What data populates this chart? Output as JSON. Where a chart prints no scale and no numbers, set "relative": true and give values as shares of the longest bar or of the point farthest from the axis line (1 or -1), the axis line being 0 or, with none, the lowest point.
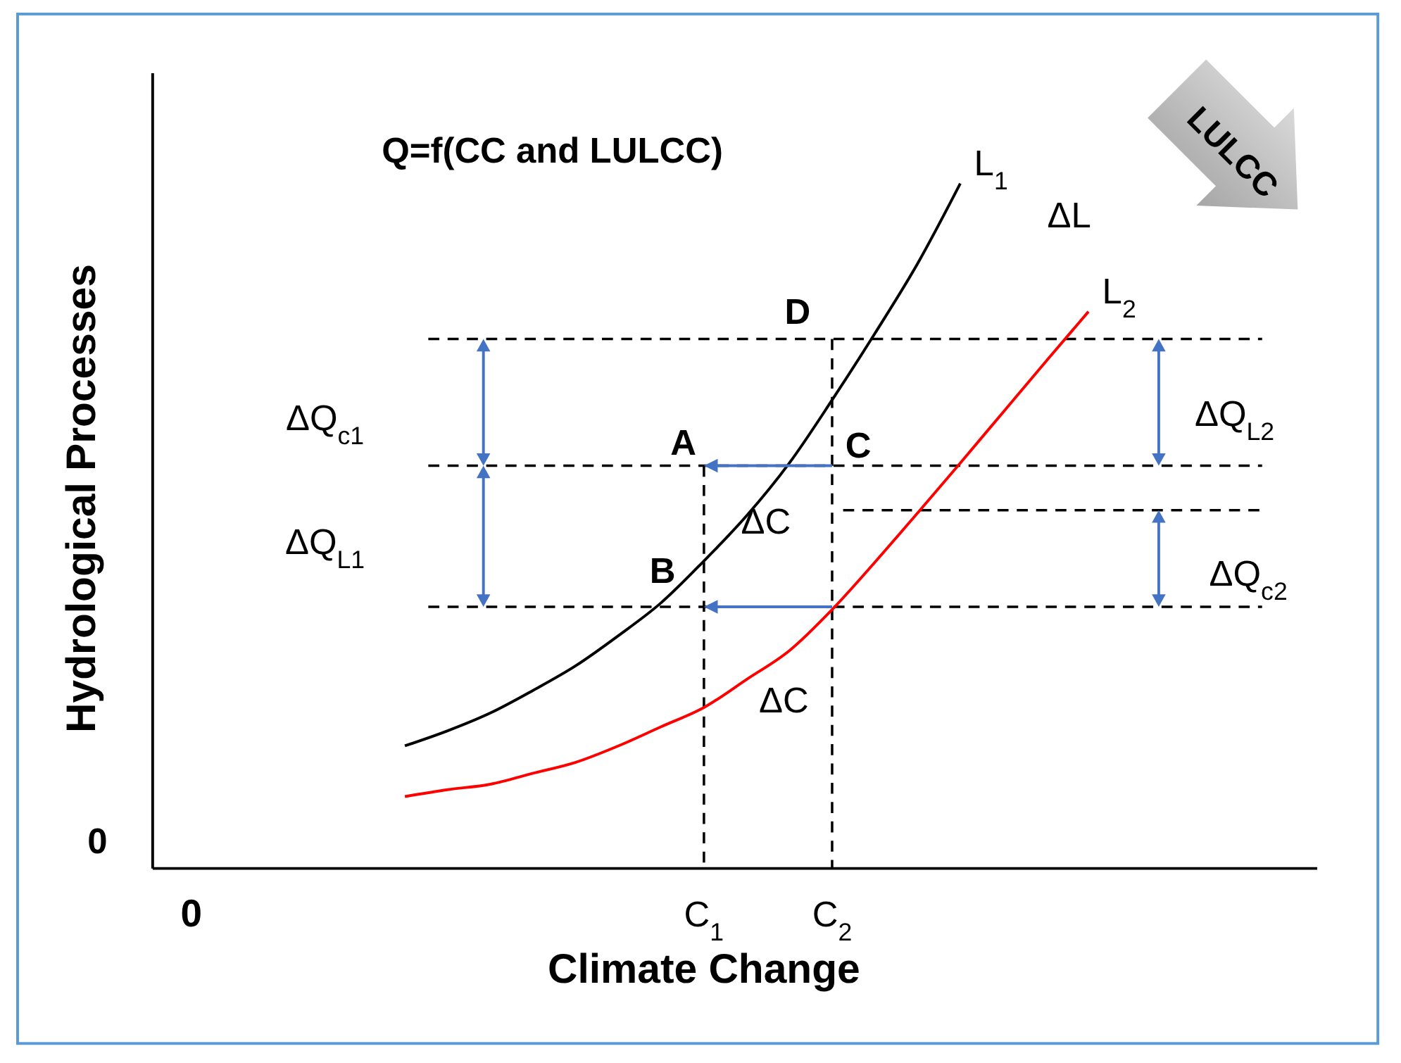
{
  "chart_data": {
    "type": "line",
    "relative": true,
    "title": "Q=f(CC and LULCC)",
    "xlabel": "Climate Change",
    "ylabel": "Hydrological Processes",
    "categories": [
      "0",
      null,
      null,
      null,
      null,
      null,
      null,
      null,
      null,
      null,
      null,
      null,
      "C$_{1}$",
      null,
      null,
      "C$_{2}$",
      null,
      null,
      null,
      null,
      null,
      null,
      null,
      null,
      null,
      null,
      null
    ],
    "series": [
      {
        "name": "L$_{1}$",
        "color": "#000000",
        "values": [
          null,
          null,
          null,
          null,
          null,
          0.179,
          0.201,
          0.227,
          0.26,
          0.296,
          0.34,
          0.388,
          0.449,
          0.515,
          0.592,
          0.684,
          0.781,
          0.883,
          1,
          null,
          null,
          null,
          null,
          null,
          null,
          null,
          null
        ]
      },
      {
        "name": "L$_{2}$",
        "color": "#ff0000",
        "values": [
          null,
          null,
          null,
          null,
          null,
          0.105,
          0.115,
          0.123,
          0.139,
          0.155,
          0.179,
          0.207,
          0.235,
          0.276,
          0.318,
          0.378,
          0.447,
          0.519,
          0.592,
          0.666,
          0.74,
          0.813,
          null,
          null,
          null,
          null,
          null
        ]
      }
    ],
    "ref_lines": [
      {
        "axis": "y",
        "value": 0.773,
        "line_style": "dashed"
      },
      {
        "axis": "y",
        "value": 0.588,
        "line_style": "dashed"
      },
      {
        "axis": "y",
        "value": 0.382,
        "line_style": "dashed"
      },
      {
        "axis": "y",
        "value": 0.523,
        "line_style": "dashed"
      },
      {
        "axis": "x",
        "value": "C$_{1}$",
        "line_style": "dashed"
      },
      {
        "axis": "x",
        "value": "C$_{2}$",
        "line_style": "dashed"
      }
    ],
    "annotations": [
      "LULCC",
      "0",
      "D",
      "A",
      "C",
      "B",
      "ΔC",
      "ΔC",
      "ΔL",
      "ΔQ$_{c1}$",
      "ΔQ$_{L1}$",
      "ΔQ$_{L2}$",
      "ΔQ$_{c2}$"
    ],
    "marker": "none",
    "line_style": "solid",
    "grid": false
  }
}
